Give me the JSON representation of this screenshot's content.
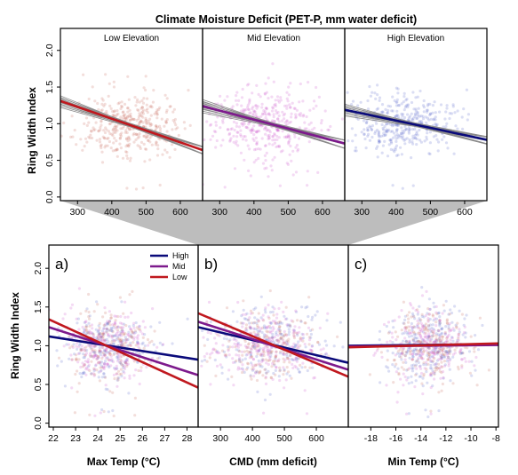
{
  "figure": {
    "title": "Climate Moisture Deficit (PET-P, mm water deficit)"
  },
  "colors": {
    "high": "#0a0a7a",
    "mid": "#7d1a8c",
    "low": "#c0181e",
    "low_points": "#c86a5a",
    "mid_points": "#cc55cc",
    "high_points": "#5a68cc",
    "bootstrap_lines": "#8a8a8a",
    "connector_band": "#bdbdbd"
  },
  "chart_data": [
    {
      "id": "top-low",
      "type": "scatter",
      "title": "Low Elevation",
      "ylabel": "Ring Width Index",
      "xlim": [
        250,
        665
      ],
      "ylim": [
        -0.05,
        2.3
      ],
      "x_ticks": [
        300,
        400,
        500,
        600
      ],
      "y_ticks": [
        0.0,
        0.5,
        1.0,
        1.5,
        2.0
      ],
      "cloud": {
        "x_center": 450,
        "x_spread": 75,
        "y_mean": 1.0,
        "y_sd": 0.23,
        "n": 380,
        "seed": 11
      },
      "fit": {
        "x": [
          250,
          665
        ],
        "y": [
          1.31,
          0.64
        ]
      },
      "bootstrap_slope_range": [
        -0.0013,
        -0.0019
      ],
      "bootstrap_count": 14
    },
    {
      "id": "top-mid",
      "type": "scatter",
      "title": "Mid Elevation",
      "xlim": [
        250,
        665
      ],
      "ylim": [
        -0.05,
        2.3
      ],
      "x_ticks": [
        300,
        400,
        500,
        600
      ],
      "cloud": {
        "x_center": 430,
        "x_spread": 80,
        "y_mean": 1.0,
        "y_sd": 0.24,
        "n": 420,
        "seed": 23
      },
      "fit": {
        "x": [
          250,
          665
        ],
        "y": [
          1.24,
          0.73
        ]
      },
      "bootstrap_slope_range": [
        -0.0009,
        -0.0016
      ],
      "bootstrap_count": 14
    },
    {
      "id": "top-high",
      "type": "scatter",
      "title": "High Elevation",
      "xlim": [
        250,
        665
      ],
      "ylim": [
        -0.05,
        2.3
      ],
      "x_ticks": [
        300,
        400,
        500,
        600
      ],
      "cloud": {
        "x_center": 420,
        "x_spread": 85,
        "y_mean": 1.0,
        "y_sd": 0.2,
        "n": 420,
        "seed": 37
      },
      "fit": {
        "x": [
          250,
          665
        ],
        "y": [
          1.19,
          0.78
        ]
      },
      "bootstrap_slope_range": [
        -0.0007,
        -0.0013
      ],
      "bootstrap_count": 14
    },
    {
      "id": "bottom-a",
      "type": "scatter",
      "panel_label": "a)",
      "xlabel": "Max Temp (°C)",
      "ylabel": "Ring Width Index",
      "xlim": [
        21.8,
        28.5
      ],
      "ylim": [
        -0.05,
        2.3
      ],
      "x_ticks": [
        22,
        23,
        24,
        25,
        26,
        27,
        28
      ],
      "y_ticks": [
        0.0,
        0.5,
        1.0,
        1.5,
        2.0
      ],
      "cloud": {
        "x_center": 24.4,
        "x_spread": 0.95,
        "y_mean": 1.0,
        "y_sd": 0.24,
        "n": 700,
        "seed": 51
      },
      "legend": {
        "position": "top-right",
        "entries": [
          "High",
          "Mid",
          "Low"
        ]
      },
      "series": [
        {
          "name": "High",
          "x": [
            21.8,
            28.5
          ],
          "y": [
            1.12,
            0.82
          ]
        },
        {
          "name": "Mid",
          "x": [
            21.8,
            28.5
          ],
          "y": [
            1.24,
            0.62
          ]
        },
        {
          "name": "Low",
          "x": [
            21.8,
            28.5
          ],
          "y": [
            1.34,
            0.46
          ]
        }
      ]
    },
    {
      "id": "bottom-b",
      "type": "scatter",
      "panel_label": "b)",
      "xlabel": "CMD (mm deficit)",
      "xlim": [
        230,
        700
      ],
      "ylim": [
        -0.05,
        2.3
      ],
      "x_ticks": [
        300,
        400,
        500,
        600
      ],
      "cloud": {
        "x_center": 440,
        "x_spread": 85,
        "y_mean": 1.0,
        "y_sd": 0.24,
        "n": 700,
        "seed": 67
      },
      "series": [
        {
          "name": "High",
          "x": [
            230,
            700
          ],
          "y": [
            1.24,
            0.78
          ]
        },
        {
          "name": "Mid",
          "x": [
            230,
            700
          ],
          "y": [
            1.31,
            0.69
          ]
        },
        {
          "name": "Low",
          "x": [
            230,
            700
          ],
          "y": [
            1.42,
            0.6
          ]
        }
      ]
    },
    {
      "id": "bottom-c",
      "type": "scatter",
      "panel_label": "c)",
      "xlabel": "Min Temp (°C)",
      "xlim": [
        -19.8,
        -7.8
      ],
      "ylim": [
        -0.05,
        2.3
      ],
      "x_ticks": [
        -18,
        -16,
        -14,
        -12,
        -10,
        -8
      ],
      "cloud": {
        "x_center": -13.3,
        "x_spread": 1.6,
        "y_mean": 1.0,
        "y_sd": 0.24,
        "n": 700,
        "seed": 83
      },
      "series": [
        {
          "name": "High",
          "x": [
            -19.8,
            -7.8
          ],
          "y": [
            1.0,
            1.02
          ]
        },
        {
          "name": "Mid",
          "x": [
            -19.8,
            -7.8
          ],
          "y": [
            0.99,
            1.01
          ]
        },
        {
          "name": "Low",
          "x": [
            -19.8,
            -7.8
          ],
          "y": [
            0.98,
            1.03
          ]
        }
      ]
    }
  ]
}
